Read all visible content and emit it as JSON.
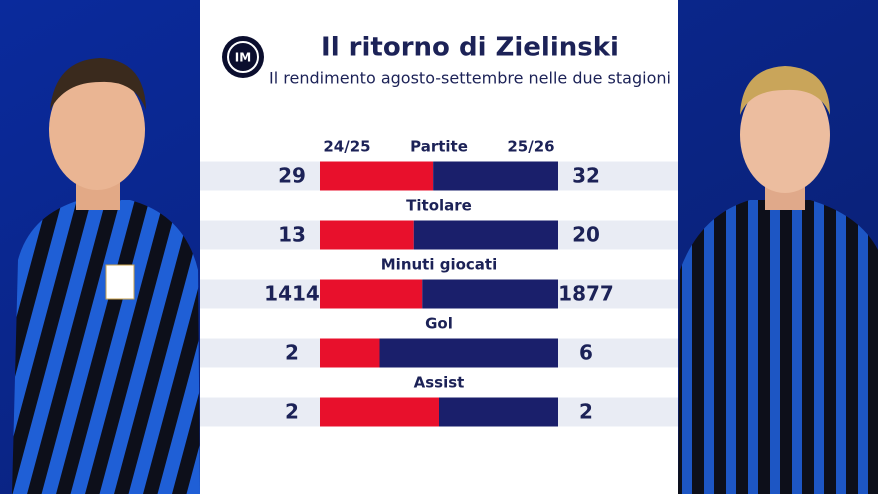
{
  "chart_data": {
    "type": "share_bar",
    "title": "Il ritorno di Zielinski",
    "subtitle": "Il rendimento agosto-settembre nelle due stagioni",
    "categories": [
      "Partite",
      "Titolare",
      "Minuti giocati",
      "Gol",
      "Assist"
    ],
    "series": [
      {
        "name": "24/25",
        "color": "#e8102c",
        "values": [
          29,
          13,
          1414,
          2,
          2
        ]
      },
      {
        "name": "25/26",
        "color": "#1a1f6b",
        "values": [
          32,
          20,
          1877,
          6,
          2
        ]
      }
    ]
  }
}
